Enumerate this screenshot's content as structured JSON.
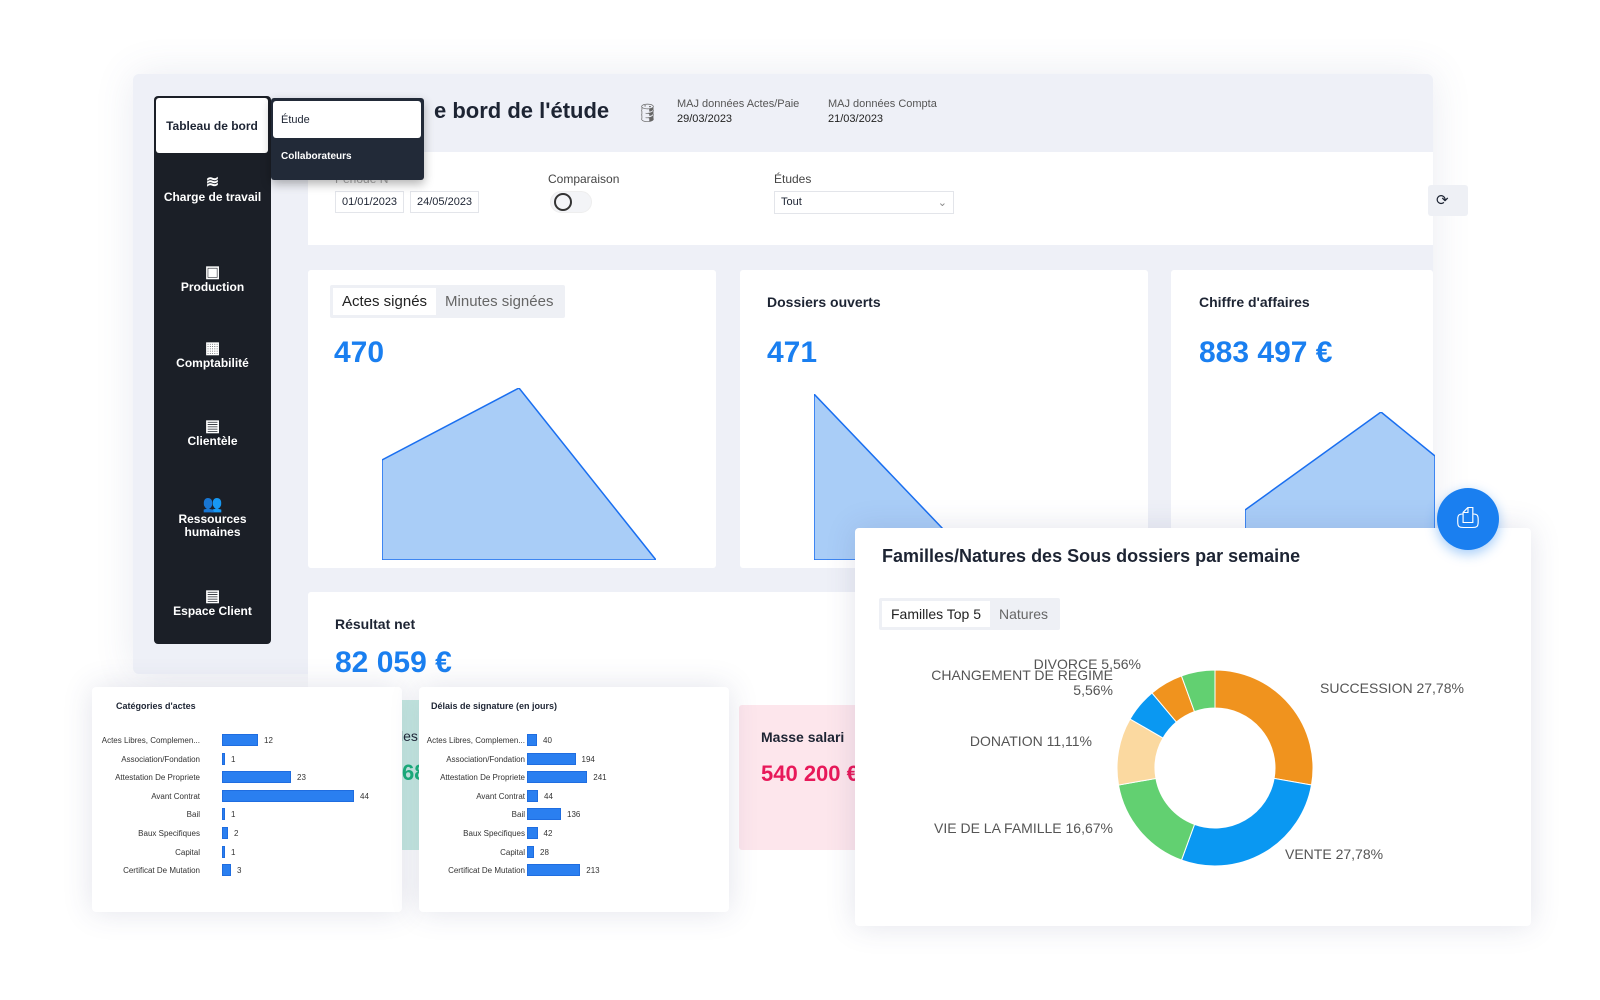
{
  "sidebar": {
    "active": "Tableau de bord",
    "items": [
      {
        "label": "Charge de travail",
        "icon": "layers-icon"
      },
      {
        "label": "Production",
        "icon": "folder-gear-icon"
      },
      {
        "label": "Comptabilité",
        "icon": "calculator-icon"
      },
      {
        "label": "Clientèle",
        "icon": "briefcase-icon"
      },
      {
        "label": "Ressources humaines",
        "icon": "people-icon"
      },
      {
        "label": "Espace Client",
        "icon": "briefcase-icon"
      }
    ]
  },
  "submenu": {
    "items": [
      "Étude",
      "Collaborateurs"
    ]
  },
  "header": {
    "title": "e bord de l'étude",
    "maj_actes_label": "MAJ données Actes/Paie",
    "maj_actes_date": "29/03/2023",
    "maj_compta_label": "MAJ données Compta",
    "maj_compta_date": "21/03/2023"
  },
  "filters": {
    "periode_label": "Période N",
    "date_start": "01/01/2023",
    "date_end": "24/05/2023",
    "comparaison_label": "Comparaison",
    "comparaison_on": false,
    "etudes_label": "Études",
    "etudes_value": "Tout"
  },
  "kpis": {
    "actes": {
      "tabs": [
        "Actes signés",
        "Minutes signées"
      ],
      "value": "470"
    },
    "dossiers": {
      "title": "Dossiers ouverts",
      "value": "471"
    },
    "ca": {
      "title": "Chiffre d'affaires",
      "value": "883 497 €"
    },
    "resultat": {
      "title": "Résultat net",
      "value": "82 059 €"
    },
    "hidden": {
      "title_fragment": "les",
      "value_fragment": "68"
    },
    "masse": {
      "title": "Masse salari",
      "value": "540 200 €"
    }
  },
  "colors": {
    "accent": "#1a7ff0",
    "area": "#a9cdf7",
    "masse": "#e8195a",
    "teal": "#18b27a"
  },
  "chart_data": [
    {
      "type": "area",
      "name": "actes",
      "values": [
        0.42,
        1,
        0
      ]
    },
    {
      "type": "area",
      "name": "dossiers",
      "values": [
        1,
        0
      ]
    },
    {
      "type": "area",
      "name": "ca",
      "values": [
        0,
        1,
        0.55
      ]
    },
    {
      "type": "bar",
      "title": "Catégories d'actes",
      "orientation": "horizontal",
      "categories": [
        "Actes Libres, Complemen...",
        "Association/Fondation",
        "Attestation De Propriete",
        "Avant Contrat",
        "Bail",
        "Baux Specifiques",
        "Capital",
        "Certificat De Mutation"
      ],
      "values": [
        12,
        1,
        23,
        44,
        1,
        2,
        1,
        3
      ]
    },
    {
      "type": "bar",
      "title": "Délais de signature (en jours)",
      "orientation": "horizontal",
      "categories": [
        "Actes Libres, Complemen...",
        "Association/Fondation",
        "Attestation De Propriete",
        "Avant Contrat",
        "Bail",
        "Baux Specifiques",
        "Capital",
        "Certificat De Mutation"
      ],
      "values": [
        40,
        194,
        241,
        44,
        136,
        42,
        28,
        213
      ]
    },
    {
      "type": "pie",
      "title": "Familles/Natures des Sous dossiers par semaine",
      "tabs": [
        "Familles Top 5",
        "Natures"
      ],
      "slices": [
        {
          "label": "SUCCESSION 27,78%",
          "value": 27.78,
          "color": "#f0931e"
        },
        {
          "label": "VENTE 27,78%",
          "value": 27.78,
          "color": "#0a98f2"
        },
        {
          "label": "VIE DE LA FAMILLE 16,67%",
          "value": 16.67,
          "color": "#62d071"
        },
        {
          "label": "DONATION 11,11%",
          "value": 11.11,
          "color": "#fbd9a0"
        },
        {
          "label": "CHANGEMENT DE REGIME 5,56%",
          "value": 5.56,
          "color": "#0a98f2"
        },
        {
          "label": "DIVORCE 5,56%",
          "value": 5.56,
          "color": "#f0931e"
        },
        {
          "label": "",
          "value": 5.56,
          "color": "#62d071"
        }
      ]
    }
  ]
}
